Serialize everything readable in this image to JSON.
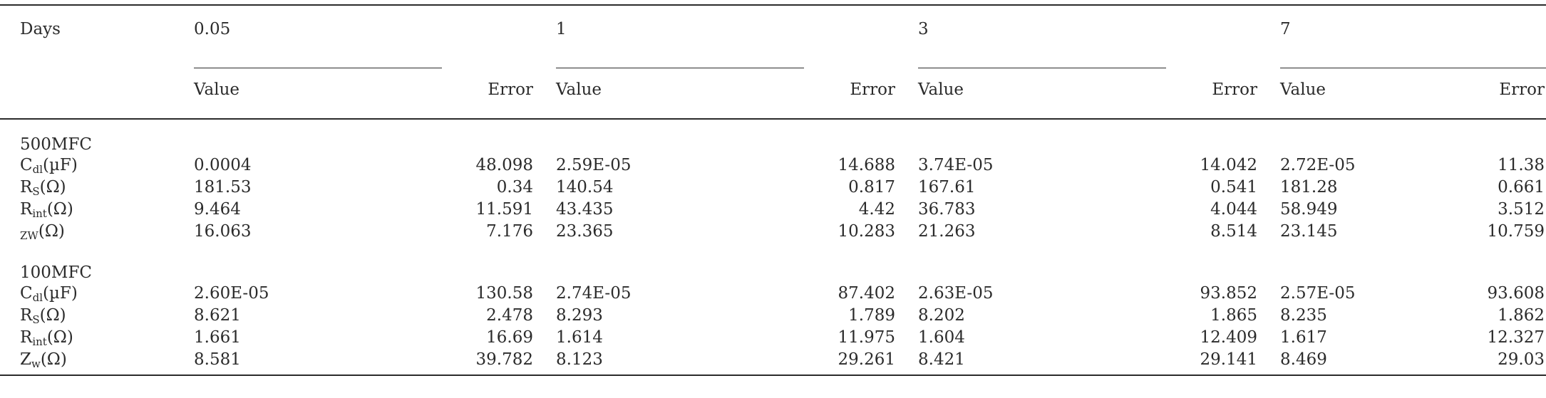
{
  "header": {
    "days_label": "Days",
    "days": [
      "0.05",
      "1",
      "3",
      "7"
    ],
    "value_label": "Value",
    "error_label": "Error"
  },
  "groups": [
    {
      "name": "500MFC",
      "rows": [
        {
          "main": "C",
          "sub": "dl",
          "unit": "(µF)",
          "cells": [
            "0.0004",
            "48.098",
            "2.59E-05",
            "14.688",
            "3.74E-05",
            "14.042",
            "2.72E-05",
            "11.38"
          ]
        },
        {
          "main": "R",
          "sub": "S",
          "unit": "(Ω)",
          "cells": [
            "181.53",
            "0.34",
            "140.54",
            "0.817",
            "167.61",
            "0.541",
            "181.28",
            "0.661"
          ]
        },
        {
          "main": "R",
          "sub": "int",
          "unit": "(Ω)",
          "cells": [
            "9.464",
            "11.591",
            "43.435",
            "4.42",
            "36.783",
            "4.044",
            "58.949",
            "3.512"
          ]
        },
        {
          "main": "",
          "sub": "ZW",
          "unit": "(Ω)",
          "cells": [
            "16.063",
            "7.176",
            "23.365",
            "10.283",
            "21.263",
            "8.514",
            "23.145",
            "10.759"
          ]
        }
      ]
    },
    {
      "name": "100MFC",
      "rows": [
        {
          "main": "C",
          "sub": "dl",
          "unit": "(µF)",
          "cells": [
            "2.60E-05",
            "130.58",
            "2.74E-05",
            "87.402",
            "2.63E-05",
            "93.852",
            "2.57E-05",
            "93.608"
          ]
        },
        {
          "main": "R",
          "sub": "S",
          "unit": "(Ω)",
          "cells": [
            "8.621",
            "2.478",
            "8.293",
            "1.789",
            "8.202",
            "1.865",
            "8.235",
            "1.862"
          ]
        },
        {
          "main": "R",
          "sub": "int",
          "unit": "(Ω)",
          "cells": [
            "1.661",
            "16.69",
            "1.614",
            "11.975",
            "1.604",
            "12.409",
            "1.617",
            "12.327"
          ]
        },
        {
          "main": "Z",
          "sub": "w",
          "unit": "(Ω)",
          "cells": [
            "8.581",
            "39.782",
            "8.123",
            "29.261",
            "8.421",
            "29.141",
            "8.469",
            "29.03"
          ]
        }
      ]
    }
  ]
}
